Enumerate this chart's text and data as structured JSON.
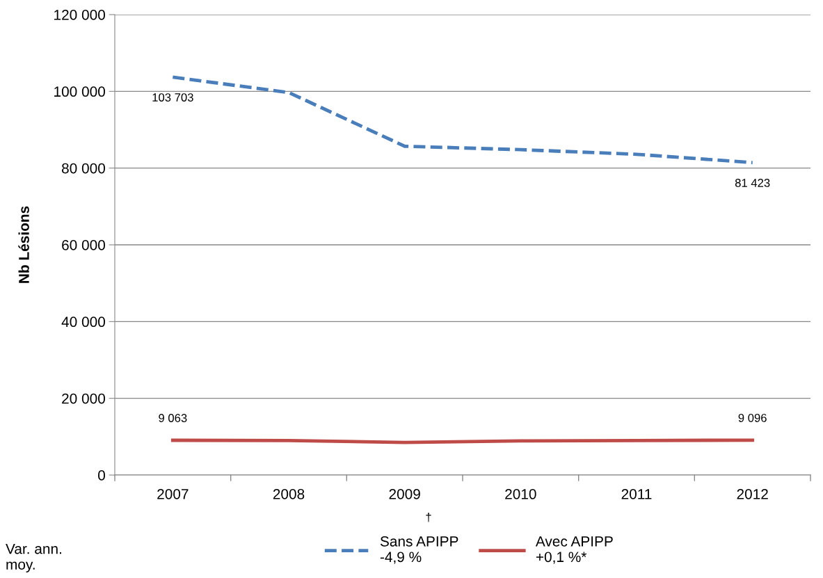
{
  "chart_data": {
    "type": "line",
    "ylabel": "Nb Lésions",
    "categories": [
      "2007",
      "2008",
      "2009",
      "2010",
      "2011",
      "2012"
    ],
    "series": [
      {
        "name": "Sans APIPP\n-4,9 %",
        "color": "#4a7ebb",
        "line_style": "dashed",
        "values": [
          103703,
          99700,
          85700,
          84800,
          83600,
          81423
        ],
        "value_labels": [
          "103 703",
          null,
          null,
          null,
          null,
          "81 423"
        ]
      },
      {
        "name": "Avec APIPP\n+0,1 %*",
        "color": "#be4b48",
        "line_style": "solid",
        "values": [
          9063,
          9000,
          8500,
          8900,
          9000,
          9096
        ],
        "value_labels": [
          "9 063",
          null,
          null,
          null,
          null,
          "9 096"
        ]
      }
    ],
    "ylim": [
      0,
      120000
    ],
    "yticks": [
      {
        "value": 0,
        "label": "0"
      },
      {
        "value": 20000,
        "label": "20 000"
      },
      {
        "value": 40000,
        "label": "40 000"
      },
      {
        "value": 60000,
        "label": "60 000"
      },
      {
        "value": 80000,
        "label": "80 000"
      },
      {
        "value": 100000,
        "label": "100 000"
      },
      {
        "value": 120000,
        "label": "120 000"
      }
    ],
    "grid": "y",
    "legend": "bottom",
    "marker": "none",
    "annotations": [
      "Var. ann.\nmoy.",
      "†"
    ]
  }
}
